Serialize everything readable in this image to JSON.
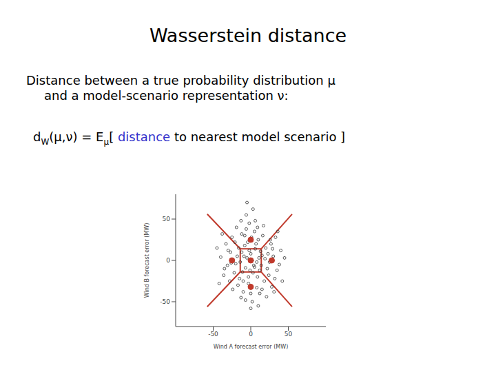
{
  "slide": {
    "title": "Wasserstein distance",
    "lines": [
      "Distance between a true probability distribution μ",
      "and a model-scenario representation ν:"
    ],
    "formula": [
      {
        "text": "d"
      },
      {
        "text": "W",
        "sub": true
      },
      {
        "text": "(μ,ν) = E"
      },
      {
        "text": "μ",
        "sub": true
      },
      {
        "text": "[ "
      },
      {
        "text": "distance",
        "color": "#3333cc"
      },
      {
        "text": " to nearest model scenario ]"
      }
    ]
  },
  "chart_data": {
    "type": "scatter",
    "x_label": "Wind A forecast error (MW)",
    "y_label": "Wind B forecast error (MW)",
    "xlim": [
      -100,
      100
    ],
    "ylim": [
      -80,
      80
    ],
    "xticks": [
      -50,
      0,
      50
    ],
    "yticks": [
      -50,
      0,
      50
    ],
    "grid": false,
    "series": [
      {
        "color": "#333333",
        "marker": "circle_open",
        "x": [
          -5,
          8,
          -12,
          15,
          3,
          -20,
          22,
          -8,
          10,
          -3,
          30,
          -30,
          5,
          -15,
          18,
          -25,
          27,
          -2,
          12,
          -35,
          38,
          -10,
          0,
          6,
          -7,
          14,
          -18,
          20,
          -4,
          9,
          -22,
          24,
          -12,
          16,
          -28,
          32,
          -40,
          40,
          2,
          -6,
          11,
          -14,
          4,
          -9,
          19,
          -1,
          7,
          -16,
          25,
          -26,
          1,
          -3,
          13,
          -11,
          33,
          -33,
          28,
          -24,
          17,
          -19,
          8,
          -8,
          35,
          -36,
          0,
          3,
          -5,
          10,
          -13,
          21,
          -42,
          42,
          -45,
          45,
          5,
          -2,
          12,
          -10,
          23,
          -21,
          15,
          -17,
          29,
          -31,
          6,
          -7,
          36,
          -38,
          0,
          2,
          -27,
          26,
          -6,
          9,
          -13,
          31
        ],
        "y": [
          3,
          -2,
          10,
          6,
          -15,
          -4,
          -10,
          18,
          25,
          -28,
          5,
          12,
          35,
          -22,
          -25,
          28,
          20,
          45,
          -40,
          -10,
          -5,
          -38,
          8,
          14,
          -9,
          -6,
          5,
          15,
          22,
          -20,
          -15,
          -18,
          32,
          30,
          -25,
          -22,
          4,
          12,
          -50,
          55,
          3,
          -2,
          -6,
          5,
          2,
          -12,
          20,
          15,
          -2,
          -3,
          28,
          -20,
          11,
          -14,
          28,
          20,
          -32,
          -35,
          42,
          40,
          -33,
          30,
          -12,
          -18,
          -40,
          62,
          70,
          -55,
          48,
          -44,
          -28,
          -25,
          15,
          3,
          -8,
          12,
          -12,
          -25,
          8,
          22,
          -35,
          -30,
          14,
          -6,
          48,
          -48,
          35,
          32,
          -58,
          0,
          10,
          25,
          38,
          40,
          -45,
          -38
        ]
      },
      {
        "color": "#c0392b",
        "marker": "circle",
        "x": [
          0,
          0,
          28,
          0,
          -25
        ],
        "y": [
          0,
          25,
          0,
          -32,
          0
        ]
      }
    ],
    "boundaries": {
      "color": "#c0392b",
      "segments": [
        [
          [
            -14,
            14
          ],
          [
            14,
            14
          ]
        ],
        [
          [
            14,
            14
          ],
          [
            14,
            -14
          ]
        ],
        [
          [
            14,
            -14
          ],
          [
            -14,
            -14
          ]
        ],
        [
          [
            -14,
            -14
          ],
          [
            -14,
            14
          ]
        ],
        [
          [
            -14,
            14
          ],
          [
            -58,
            56
          ]
        ],
        [
          [
            14,
            14
          ],
          [
            55,
            56
          ]
        ],
        [
          [
            14,
            -14
          ],
          [
            55,
            -56
          ]
        ],
        [
          [
            -14,
            -14
          ],
          [
            -58,
            -56
          ]
        ]
      ]
    }
  }
}
